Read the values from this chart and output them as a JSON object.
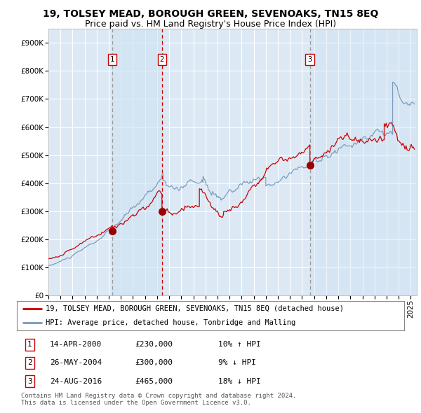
{
  "title": "19, TOLSEY MEAD, BOROUGH GREEN, SEVENOAKS, TN15 8EQ",
  "subtitle": "Price paid vs. HM Land Registry's House Price Index (HPI)",
  "ylim": [
    0,
    950000
  ],
  "xlim_start": 1995.0,
  "xlim_end": 2025.5,
  "yticks": [
    0,
    100000,
    200000,
    300000,
    400000,
    500000,
    600000,
    700000,
    800000,
    900000
  ],
  "ytick_labels": [
    "£0",
    "£100K",
    "£200K",
    "£300K",
    "£400K",
    "£500K",
    "£600K",
    "£700K",
    "£800K",
    "£900K"
  ],
  "xticks": [
    1995,
    1996,
    1997,
    1998,
    1999,
    2000,
    2001,
    2002,
    2003,
    2004,
    2005,
    2006,
    2007,
    2008,
    2009,
    2010,
    2011,
    2012,
    2013,
    2014,
    2015,
    2016,
    2017,
    2018,
    2019,
    2020,
    2021,
    2022,
    2023,
    2024,
    2025
  ],
  "background_color": "#ffffff",
  "plot_bg_color": "#dce9f5",
  "grid_color": "#ffffff",
  "sale_dates": [
    2000.29,
    2004.4,
    2016.65
  ],
  "sale_prices": [
    230000,
    300000,
    465000
  ],
  "sale_labels": [
    "1",
    "2",
    "3"
  ],
  "red_color": "#cc0000",
  "blue_color": "#7799bb",
  "annotation_box_color": "#ffffff",
  "annotation_box_edge": "#cc0000",
  "legend_line1": "19, TOLSEY MEAD, BOROUGH GREEN, SEVENOAKS, TN15 8EQ (detached house)",
  "legend_line2": "HPI: Average price, detached house, Tonbridge and Malling",
  "table_rows": [
    [
      "1",
      "14-APR-2000",
      "£230,000",
      "10% ↑ HPI"
    ],
    [
      "2",
      "26-MAY-2004",
      "£300,000",
      "9% ↓ HPI"
    ],
    [
      "3",
      "24-AUG-2016",
      "£465,000",
      "18% ↓ HPI"
    ]
  ],
  "footer": "Contains HM Land Registry data © Crown copyright and database right 2024.\nThis data is licensed under the Open Government Licence v3.0.",
  "title_fontsize": 10,
  "subtitle_fontsize": 9,
  "tick_fontsize": 7.5,
  "legend_fontsize": 8
}
